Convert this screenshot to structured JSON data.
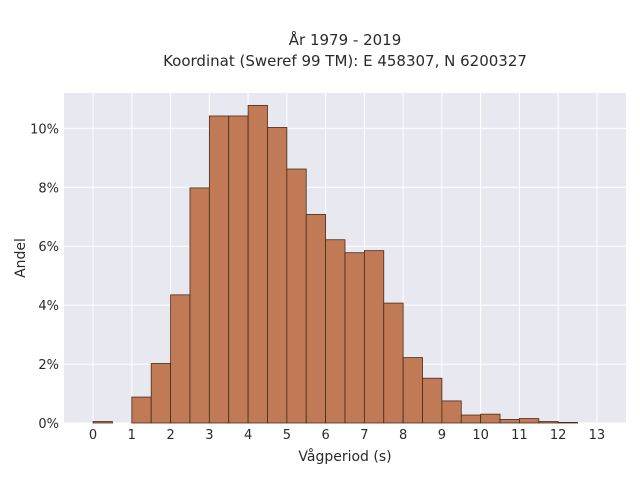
{
  "chart_data": {
    "type": "bar",
    "title_line1": "År 1979 - 2019",
    "title_line2": "Koordinat (Sweref 99 TM): E 458307, N 6200327",
    "xlabel": "Vågperiod (s)",
    "ylabel": "Andel",
    "xlim": [
      -0.75,
      13.75
    ],
    "ylim": [
      0,
      11.2
    ],
    "x_ticks": [
      "0",
      "1",
      "2",
      "3",
      "4",
      "5",
      "6",
      "7",
      "8",
      "9",
      "10",
      "11",
      "12",
      "13"
    ],
    "y_ticks": [
      "0%",
      "2%",
      "4%",
      "6%",
      "8%",
      "10%"
    ],
    "bin_width": 0.5,
    "bins": [
      {
        "x": 0.0,
        "value": 0.05
      },
      {
        "x": 0.5,
        "value": 0.0
      },
      {
        "x": 1.0,
        "value": 0.88
      },
      {
        "x": 1.5,
        "value": 2.02
      },
      {
        "x": 2.0,
        "value": 4.35
      },
      {
        "x": 2.5,
        "value": 7.98
      },
      {
        "x": 3.0,
        "value": 10.42
      },
      {
        "x": 3.5,
        "value": 10.42
      },
      {
        "x": 4.0,
        "value": 10.78
      },
      {
        "x": 4.5,
        "value": 10.03
      },
      {
        "x": 5.0,
        "value": 8.62
      },
      {
        "x": 5.5,
        "value": 7.08
      },
      {
        "x": 6.0,
        "value": 6.22
      },
      {
        "x": 6.5,
        "value": 5.78
      },
      {
        "x": 7.0,
        "value": 5.85
      },
      {
        "x": 7.5,
        "value": 4.07
      },
      {
        "x": 8.0,
        "value": 2.22
      },
      {
        "x": 8.5,
        "value": 1.52
      },
      {
        "x": 9.0,
        "value": 0.75
      },
      {
        "x": 9.5,
        "value": 0.27
      },
      {
        "x": 10.0,
        "value": 0.3
      },
      {
        "x": 10.5,
        "value": 0.12
      },
      {
        "x": 11.0,
        "value": 0.15
      },
      {
        "x": 11.5,
        "value": 0.05
      },
      {
        "x": 12.0,
        "value": 0.02
      }
    ],
    "grid": true,
    "colors": {
      "bar_fill": "#c07a56",
      "bar_edge": "#4a2a1a",
      "plot_background": "#e8e8f0",
      "grid": "#ffffff"
    }
  }
}
